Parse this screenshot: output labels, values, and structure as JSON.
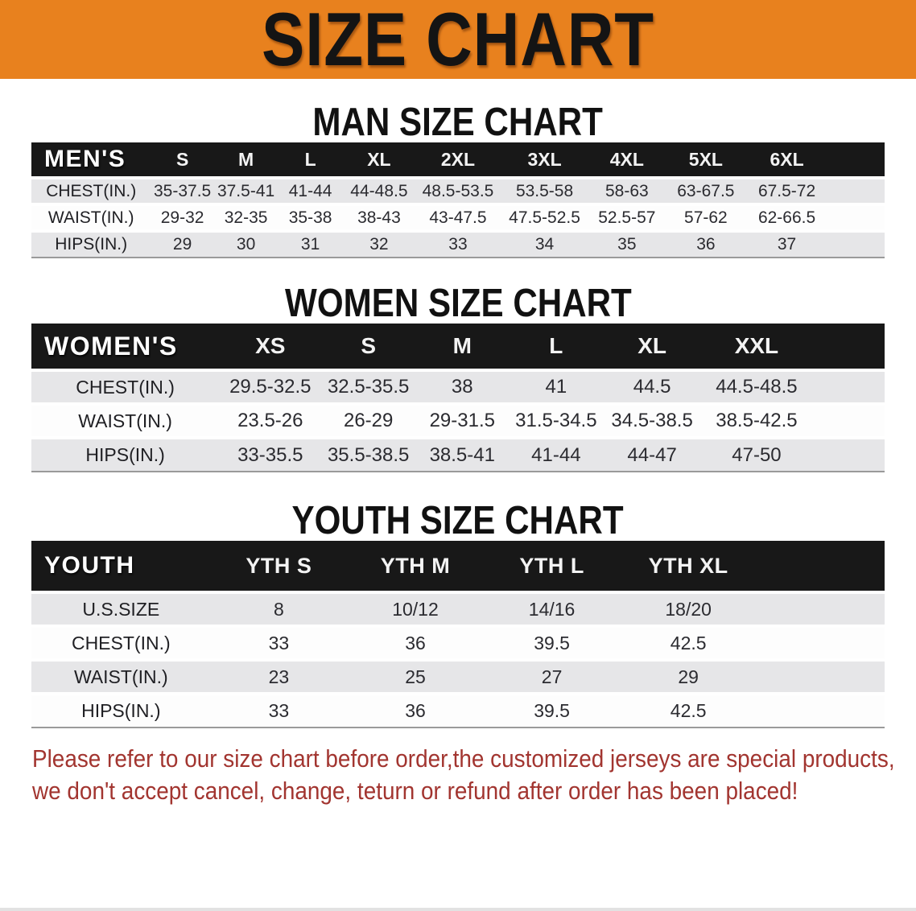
{
  "colors": {
    "banner_orange": "#e8811e",
    "table_header_black": "#181818",
    "row_stripe_gray": "#e6e6e8",
    "disclaimer_red": "#a23530"
  },
  "banner": {
    "title": "SIZE CHART"
  },
  "sections": [
    {
      "heading": "MAN SIZE CHART",
      "table": {
        "header": {
          "label": "MEN'S",
          "sizes": [
            "S",
            "M",
            "L",
            "XL",
            "2XL",
            "3XL",
            "4XL",
            "5XL",
            "6XL"
          ]
        },
        "rows": [
          {
            "label": "CHEST(IN.)",
            "values": [
              "35-37.5",
              "37.5-41",
              "41-44",
              "44-48.5",
              "48.5-53.5",
              "53.5-58",
              "58-63",
              "63-67.5",
              "67.5-72"
            ]
          },
          {
            "label": "WAIST(IN.)",
            "values": [
              "29-32",
              "32-35",
              "35-38",
              "38-43",
              "43-47.5",
              "47.5-52.5",
              "52.5-57",
              "57-62",
              "62-66.5"
            ]
          },
          {
            "label": "HIPS(IN.)",
            "values": [
              "29",
              "30",
              "31",
              "32",
              "33",
              "34",
              "35",
              "36",
              "37"
            ]
          }
        ]
      }
    },
    {
      "heading": "WOMEN SIZE CHART",
      "table": {
        "header": {
          "label": "WOMEN'S",
          "sizes": [
            "XS",
            "S",
            "M",
            "L",
            "XL",
            "XXL"
          ]
        },
        "rows": [
          {
            "label": "CHEST(IN.)",
            "values": [
              "29.5-32.5",
              "32.5-35.5",
              "38",
              "41",
              "44.5",
              "44.5-48.5"
            ]
          },
          {
            "label": "WAIST(IN.)",
            "values": [
              "23.5-26",
              "26-29",
              "29-31.5",
              "31.5-34.5",
              "34.5-38.5",
              "38.5-42.5"
            ]
          },
          {
            "label": "HIPS(IN.)",
            "values": [
              "33-35.5",
              "35.5-38.5",
              "38.5-41",
              "41-44",
              "44-47",
              "47-50"
            ]
          }
        ]
      }
    },
    {
      "heading": "YOUTH SIZE CHART",
      "table": {
        "header": {
          "label": "YOUTH",
          "sizes": [
            "YTH S",
            "YTH M",
            "YTH L",
            "YTH XL"
          ]
        },
        "rows": [
          {
            "label": "U.S.SIZE",
            "values": [
              "8",
              "10/12",
              "14/16",
              "18/20"
            ]
          },
          {
            "label": "CHEST(IN.)",
            "values": [
              "33",
              "36",
              "39.5",
              "42.5"
            ]
          },
          {
            "label": "WAIST(IN.)",
            "values": [
              "23",
              "25",
              "27",
              "29"
            ]
          },
          {
            "label": "HIPS(IN.)",
            "values": [
              "33",
              "36",
              "39.5",
              "42.5"
            ]
          }
        ]
      }
    }
  ],
  "disclaimer": {
    "line1": "Please refer to our size chart before order,the customized jerseys are special products,",
    "line2": "we don't accept cancel, change, teturn or refund after order has been placed!"
  }
}
